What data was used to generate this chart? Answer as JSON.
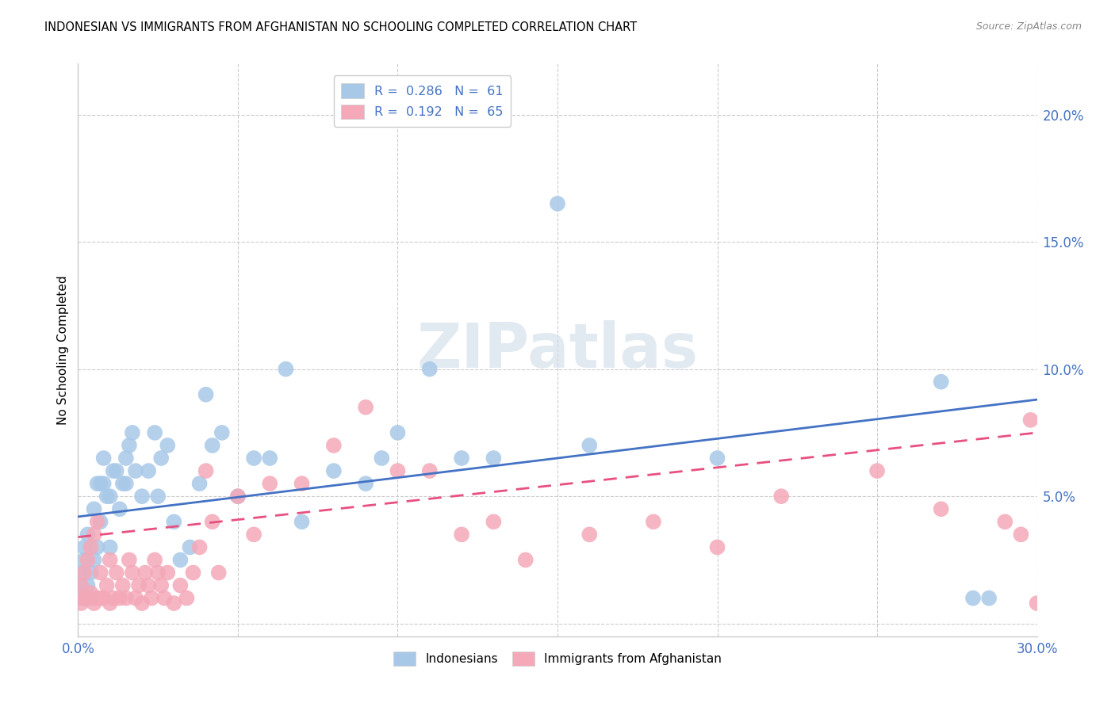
{
  "title": "INDONESIAN VS IMMIGRANTS FROM AFGHANISTAN NO SCHOOLING COMPLETED CORRELATION CHART",
  "source": "Source: ZipAtlas.com",
  "ylabel": "No Schooling Completed",
  "xlim": [
    0.0,
    0.3
  ],
  "ylim": [
    -0.005,
    0.22
  ],
  "x_ticks": [
    0.0,
    0.05,
    0.1,
    0.15,
    0.2,
    0.25,
    0.3
  ],
  "y_ticks": [
    0.0,
    0.05,
    0.1,
    0.15,
    0.2
  ],
  "scatter1_color": "#a8c8e8",
  "scatter2_color": "#f4a8b8",
  "line1_color": "#4472c4",
  "line2_color": "#e85080",
  "watermark_color": "#d0dce8",
  "indo_R": 0.286,
  "indo_N": 61,
  "afghan_R": 0.192,
  "afghan_N": 65,
  "indo_line_start_y": 0.042,
  "indo_line_end_y": 0.088,
  "afghan_line_start_y": 0.034,
  "afghan_line_end_y": 0.075,
  "indonesians_x": [
    0.001,
    0.001,
    0.001,
    0.002,
    0.002,
    0.002,
    0.003,
    0.003,
    0.004,
    0.004,
    0.005,
    0.005,
    0.006,
    0.006,
    0.007,
    0.007,
    0.008,
    0.008,
    0.009,
    0.01,
    0.01,
    0.011,
    0.012,
    0.013,
    0.014,
    0.015,
    0.015,
    0.016,
    0.017,
    0.018,
    0.02,
    0.022,
    0.024,
    0.025,
    0.026,
    0.028,
    0.03,
    0.032,
    0.035,
    0.038,
    0.04,
    0.042,
    0.045,
    0.05,
    0.055,
    0.06,
    0.065,
    0.07,
    0.08,
    0.09,
    0.095,
    0.1,
    0.11,
    0.12,
    0.13,
    0.15,
    0.16,
    0.2,
    0.27,
    0.28,
    0.285
  ],
  "indonesians_y": [
    0.01,
    0.015,
    0.02,
    0.01,
    0.025,
    0.03,
    0.015,
    0.035,
    0.01,
    0.02,
    0.025,
    0.045,
    0.03,
    0.055,
    0.055,
    0.04,
    0.055,
    0.065,
    0.05,
    0.03,
    0.05,
    0.06,
    0.06,
    0.045,
    0.055,
    0.055,
    0.065,
    0.07,
    0.075,
    0.06,
    0.05,
    0.06,
    0.075,
    0.05,
    0.065,
    0.07,
    0.04,
    0.025,
    0.03,
    0.055,
    0.09,
    0.07,
    0.075,
    0.05,
    0.065,
    0.065,
    0.1,
    0.04,
    0.06,
    0.055,
    0.065,
    0.075,
    0.1,
    0.065,
    0.065,
    0.165,
    0.07,
    0.065,
    0.095,
    0.01,
    0.01
  ],
  "afghanistan_x": [
    0.001,
    0.001,
    0.002,
    0.002,
    0.003,
    0.003,
    0.004,
    0.004,
    0.005,
    0.005,
    0.006,
    0.006,
    0.007,
    0.007,
    0.008,
    0.009,
    0.01,
    0.01,
    0.011,
    0.012,
    0.013,
    0.014,
    0.015,
    0.016,
    0.017,
    0.018,
    0.019,
    0.02,
    0.021,
    0.022,
    0.023,
    0.024,
    0.025,
    0.026,
    0.027,
    0.028,
    0.03,
    0.032,
    0.034,
    0.036,
    0.038,
    0.04,
    0.042,
    0.044,
    0.05,
    0.055,
    0.06,
    0.07,
    0.08,
    0.09,
    0.1,
    0.11,
    0.12,
    0.13,
    0.14,
    0.16,
    0.18,
    0.2,
    0.22,
    0.25,
    0.27,
    0.29,
    0.295,
    0.298,
    0.3
  ],
  "afghanistan_y": [
    0.008,
    0.015,
    0.01,
    0.02,
    0.01,
    0.025,
    0.012,
    0.03,
    0.008,
    0.035,
    0.01,
    0.04,
    0.01,
    0.02,
    0.01,
    0.015,
    0.008,
    0.025,
    0.01,
    0.02,
    0.01,
    0.015,
    0.01,
    0.025,
    0.02,
    0.01,
    0.015,
    0.008,
    0.02,
    0.015,
    0.01,
    0.025,
    0.02,
    0.015,
    0.01,
    0.02,
    0.008,
    0.015,
    0.01,
    0.02,
    0.03,
    0.06,
    0.04,
    0.02,
    0.05,
    0.035,
    0.055,
    0.055,
    0.07,
    0.085,
    0.06,
    0.06,
    0.035,
    0.04,
    0.025,
    0.035,
    0.04,
    0.03,
    0.05,
    0.06,
    0.045,
    0.04,
    0.035,
    0.08,
    0.008
  ]
}
